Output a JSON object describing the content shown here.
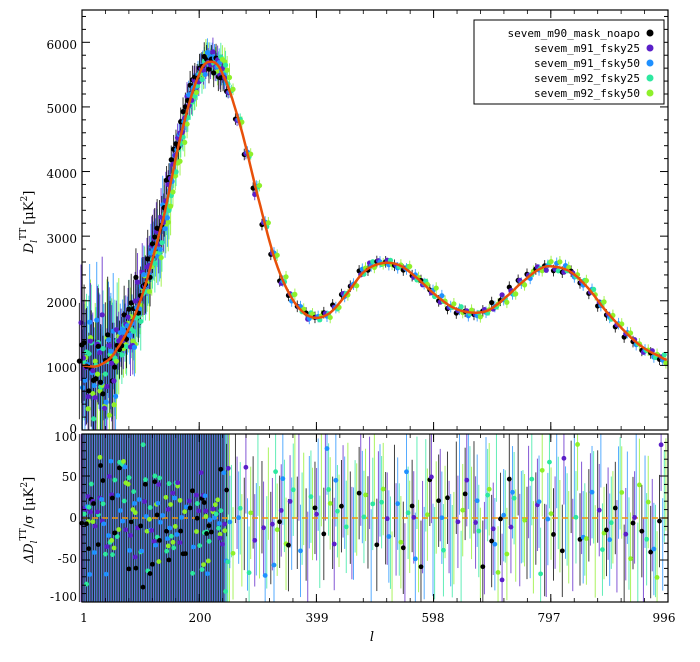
{
  "chart_data": [
    {
      "type": "scatter",
      "panel": "spectrum",
      "ylabel": "D_l^TT [μK²]",
      "ylabel_parts": {
        "main": "D",
        "sub": "l",
        "sup": "TT",
        "unit_open": "[μK",
        "unit_sup": "2",
        "unit_close": "]"
      },
      "xlim": [
        1,
        996
      ],
      "ylim": [
        0,
        6500
      ],
      "x_ticks": [
        "1",
        "200",
        "399",
        "598",
        "797",
        "996"
      ],
      "y_ticks": [
        "0",
        "1000",
        "2000",
        "3000",
        "4000",
        "5000",
        "6000"
      ],
      "legend_placement": "top-right",
      "series": [
        {
          "name": "sevem_m90_mask_noapo",
          "color": "#000000"
        },
        {
          "name": "sevem_m91_fsky25",
          "color": "#5a1fc8"
        },
        {
          "name": "sevem_m91_fsky50",
          "color": "#1e90ff"
        },
        {
          "name": "sevem_m92_fsky25",
          "color": "#2ee8a0"
        },
        {
          "name": "sevem_m92_fsky50",
          "color": "#8ef02a"
        }
      ],
      "model_curve": {
        "color": "#e8500a",
        "points": [
          [
            1,
            1000
          ],
          [
            30,
            1000
          ],
          [
            60,
            1250
          ],
          [
            100,
            2000
          ],
          [
            140,
            3300
          ],
          [
            170,
            4600
          ],
          [
            200,
            5500
          ],
          [
            220,
            5700
          ],
          [
            240,
            5500
          ],
          [
            270,
            4700
          ],
          [
            300,
            3600
          ],
          [
            330,
            2600
          ],
          [
            360,
            2000
          ],
          [
            390,
            1750
          ],
          [
            420,
            1800
          ],
          [
            450,
            2100
          ],
          [
            480,
            2450
          ],
          [
            510,
            2580
          ],
          [
            540,
            2550
          ],
          [
            570,
            2350
          ],
          [
            600,
            2100
          ],
          [
            630,
            1900
          ],
          [
            660,
            1820
          ],
          [
            690,
            1850
          ],
          [
            720,
            2050
          ],
          [
            750,
            2300
          ],
          [
            780,
            2500
          ],
          [
            800,
            2530
          ],
          [
            830,
            2450
          ],
          [
            860,
            2200
          ],
          [
            890,
            1850
          ],
          [
            920,
            1550
          ],
          [
            950,
            1300
          ],
          [
            980,
            1150
          ],
          [
            996,
            1080
          ]
        ]
      }
    },
    {
      "type": "scatter",
      "panel": "residuals",
      "ylabel": "ΔD_l^TT/σ [μK²]",
      "ylabel_parts": {
        "pre": "ΔD",
        "sub": "l",
        "sup": "TT",
        "mid": "/σ [μK",
        "unit_sup": "2",
        "unit_close": "]"
      },
      "xlabel": "l",
      "xlim": [
        1,
        996
      ],
      "ylim": [
        -100,
        100
      ],
      "x_ticks": [
        "1",
        "200",
        "399",
        "598",
        "797",
        "996"
      ],
      "y_ticks": [
        "-100",
        "-50",
        "0",
        "50",
        "100"
      ],
      "reference_line": {
        "y": 0,
        "style": "dashed",
        "color": "#f0960a"
      }
    }
  ]
}
